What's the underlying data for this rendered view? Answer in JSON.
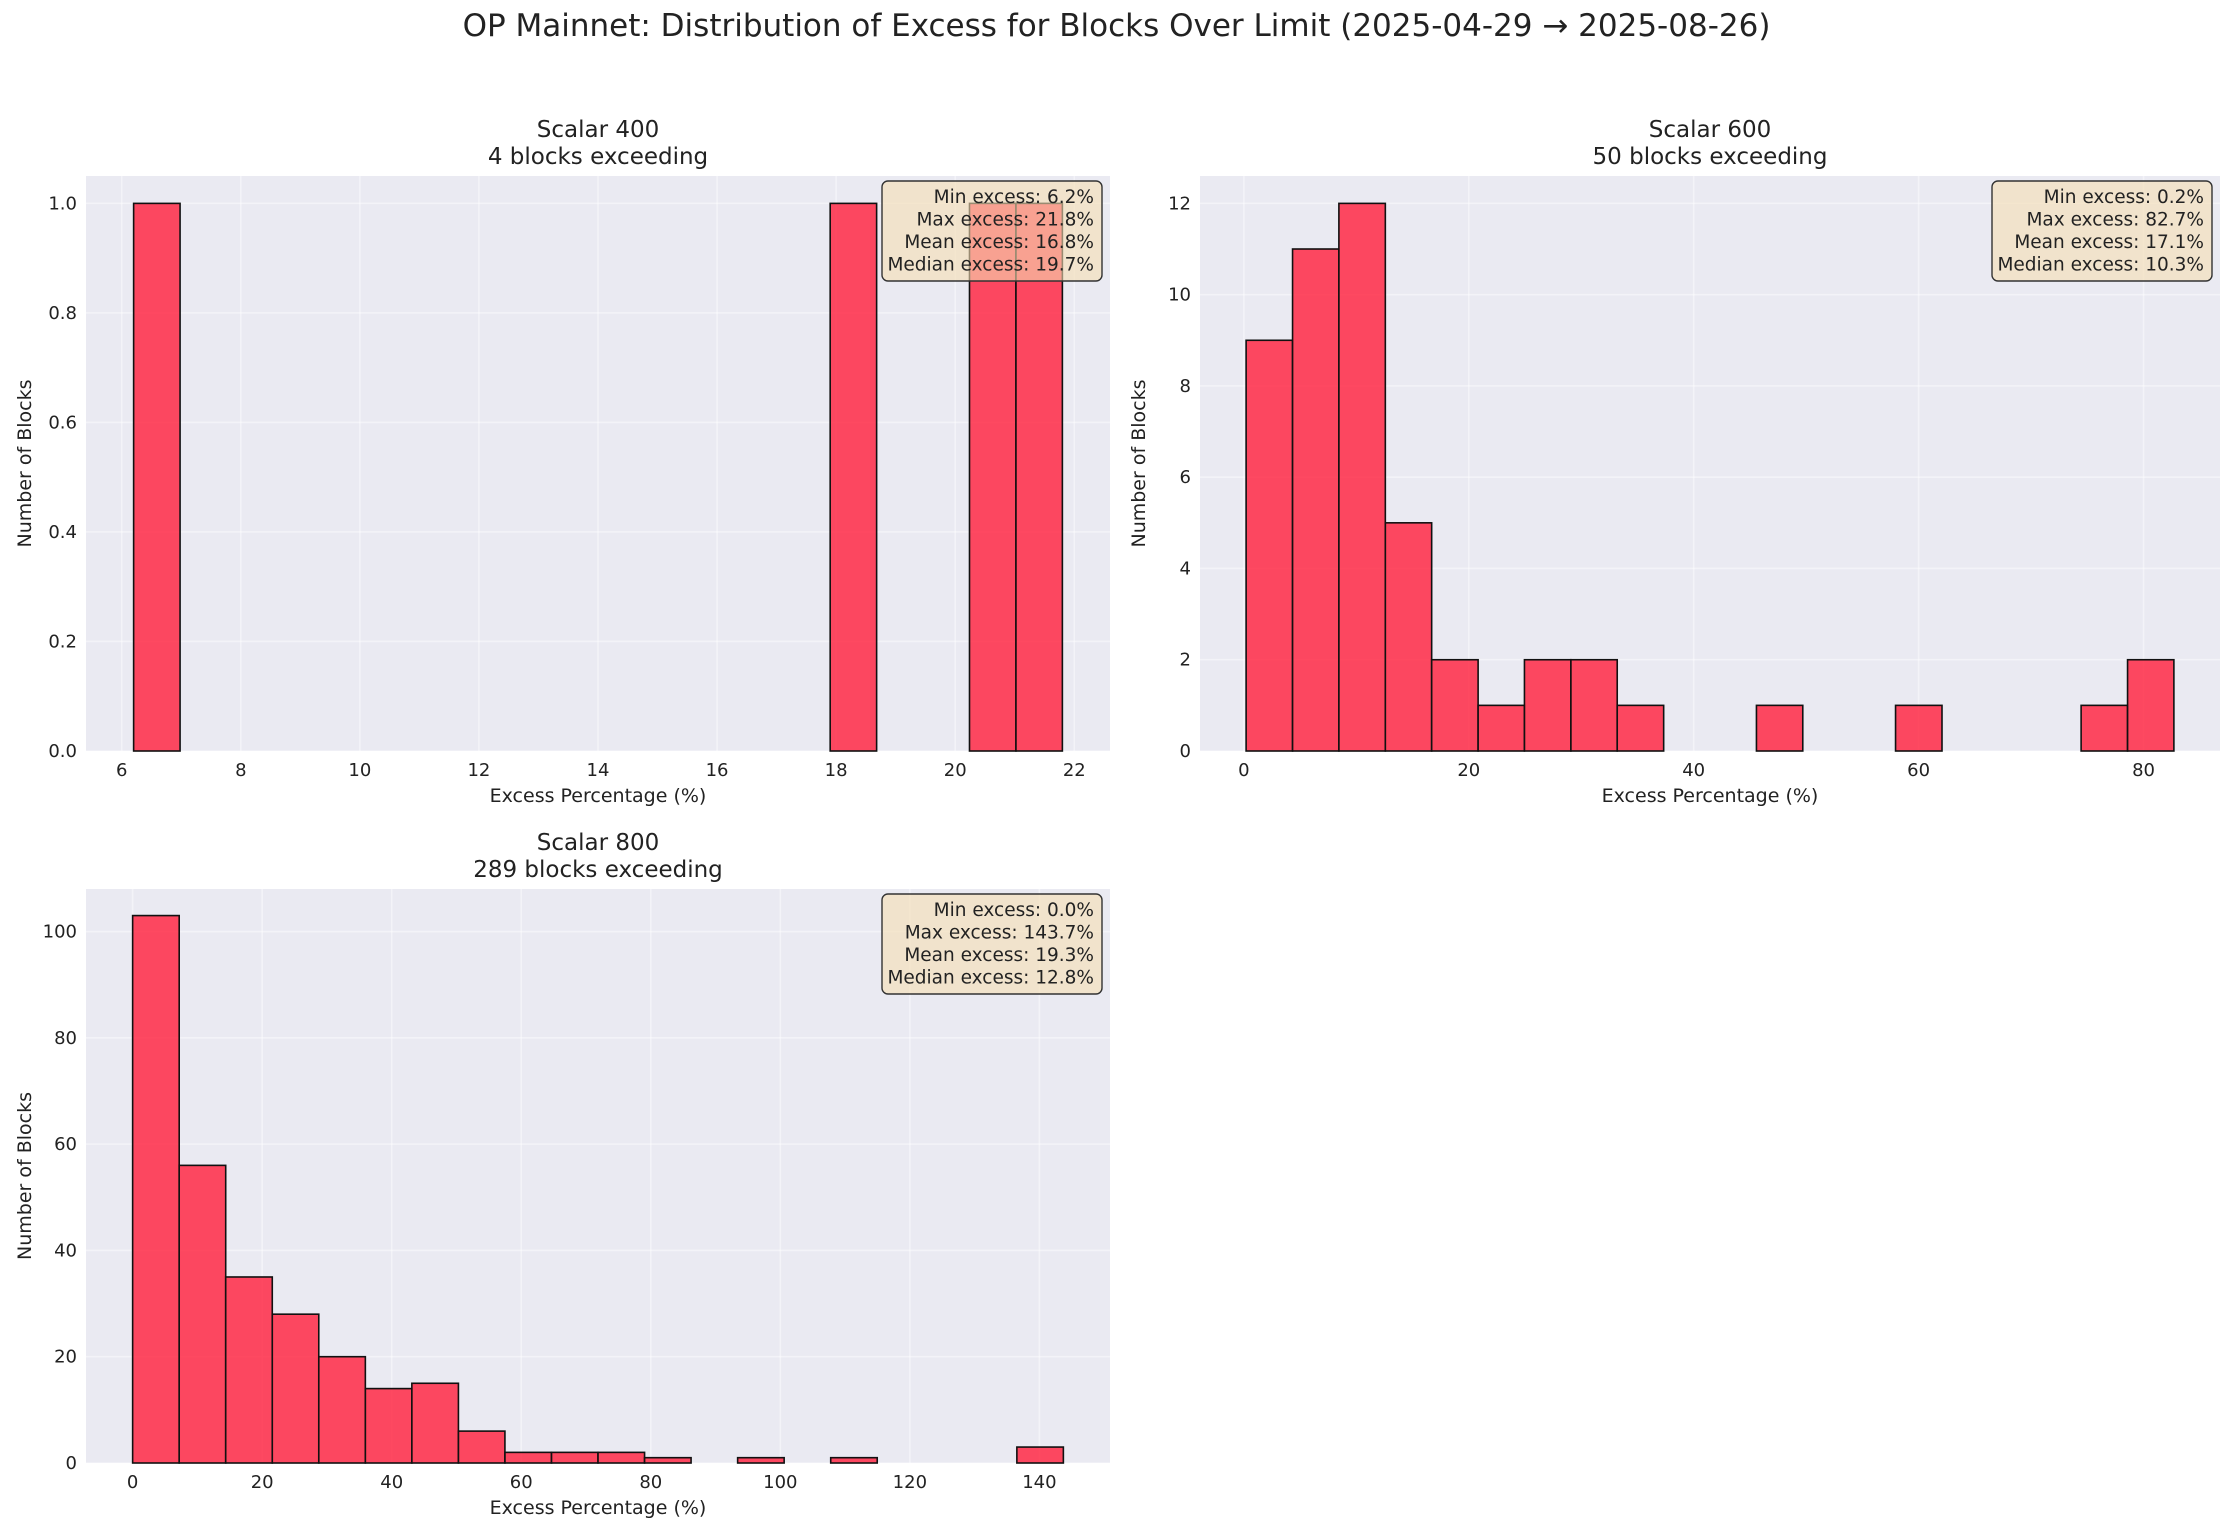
{
  "figure": {
    "title": "OP Mainnet: Distribution of Excess for Blocks Over Limit (2025-04-29 → 2025-08-26)"
  },
  "chart_data": [
    {
      "type": "bar",
      "subtype": "histogram",
      "title": "Scalar 400",
      "subtitle": "4 blocks exceeding",
      "xlabel": "Excess Percentage (%)",
      "ylabel": "Number of Blocks",
      "xlim": [
        5.4,
        22.6
      ],
      "ylim": [
        0,
        1.05
      ],
      "xticks": [
        6,
        8,
        10,
        12,
        14,
        16,
        18,
        20,
        22
      ],
      "yticks": [
        0.0,
        0.2,
        0.4,
        0.6,
        0.8,
        1.0
      ],
      "ytick_labels": [
        "0.0",
        "0.2",
        "0.4",
        "0.6",
        "0.8",
        "1.0"
      ],
      "bin_width": 0.78,
      "bins": [
        {
          "x0": 6.2,
          "x1": 6.98,
          "count": 1
        },
        {
          "x0": 17.9,
          "x1": 18.68,
          "count": 1
        },
        {
          "x0": 20.24,
          "x1": 21.02,
          "count": 1
        },
        {
          "x0": 21.02,
          "x1": 21.8,
          "count": 1
        }
      ],
      "bar_color": "#ff2a47",
      "grid": true,
      "stats_box": [
        "Min excess: 6.2%",
        "Max excess: 21.8%",
        "Mean excess: 16.8%",
        "Median excess: 19.7%"
      ]
    },
    {
      "type": "bar",
      "subtype": "histogram",
      "title": "Scalar 600",
      "subtitle": "50 blocks exceeding",
      "xlabel": "Excess Percentage (%)",
      "ylabel": "Number of Blocks",
      "xlim": [
        -3.9,
        86.8
      ],
      "ylim": [
        0,
        12.6
      ],
      "xticks": [
        0,
        20,
        40,
        60,
        80
      ],
      "yticks": [
        0,
        2,
        4,
        6,
        8,
        10,
        12
      ],
      "ytick_labels": [
        "0",
        "2",
        "4",
        "6",
        "8",
        "10",
        "12"
      ],
      "bins": [
        {
          "x0": 0.2,
          "x1": 4.33,
          "count": 9
        },
        {
          "x0": 4.33,
          "x1": 8.45,
          "count": 11
        },
        {
          "x0": 8.45,
          "x1": 12.58,
          "count": 12
        },
        {
          "x0": 12.58,
          "x1": 16.7,
          "count": 5
        },
        {
          "x0": 16.7,
          "x1": 20.83,
          "count": 2
        },
        {
          "x0": 20.83,
          "x1": 24.95,
          "count": 1
        },
        {
          "x0": 24.95,
          "x1": 29.08,
          "count": 2
        },
        {
          "x0": 29.08,
          "x1": 33.2,
          "count": 2
        },
        {
          "x0": 33.2,
          "x1": 37.33,
          "count": 1
        },
        {
          "x0": 45.58,
          "x1": 49.7,
          "count": 1
        },
        {
          "x0": 57.95,
          "x1": 62.08,
          "count": 1
        },
        {
          "x0": 74.45,
          "x1": 78.58,
          "count": 1
        },
        {
          "x0": 78.58,
          "x1": 82.7,
          "count": 2
        }
      ],
      "bar_color": "#ff2a47",
      "grid": true,
      "stats_box": [
        "Min excess: 0.2%",
        "Max excess: 82.7%",
        "Mean excess: 17.1%",
        "Median excess: 10.3%"
      ]
    },
    {
      "type": "bar",
      "subtype": "histogram",
      "title": "Scalar 800",
      "subtitle": "289 blocks exceeding",
      "xlabel": "Excess Percentage (%)",
      "ylabel": "Number of Blocks",
      "xlim": [
        -7.2,
        150.9
      ],
      "ylim": [
        0,
        108
      ],
      "xticks": [
        0,
        20,
        40,
        60,
        80,
        100,
        120,
        140
      ],
      "yticks": [
        0,
        20,
        40,
        60,
        80,
        100
      ],
      "ytick_labels": [
        "0",
        "20",
        "40",
        "60",
        "80",
        "100"
      ],
      "bins": [
        {
          "x0": 0.0,
          "x1": 7.19,
          "count": 103
        },
        {
          "x0": 7.19,
          "x1": 14.37,
          "count": 56
        },
        {
          "x0": 14.37,
          "x1": 21.56,
          "count": 35
        },
        {
          "x0": 21.56,
          "x1": 28.74,
          "count": 28
        },
        {
          "x0": 28.74,
          "x1": 35.93,
          "count": 20
        },
        {
          "x0": 35.93,
          "x1": 43.11,
          "count": 14
        },
        {
          "x0": 43.11,
          "x1": 50.3,
          "count": 15
        },
        {
          "x0": 50.3,
          "x1": 57.48,
          "count": 6
        },
        {
          "x0": 57.48,
          "x1": 64.67,
          "count": 2
        },
        {
          "x0": 64.67,
          "x1": 71.85,
          "count": 2
        },
        {
          "x0": 71.85,
          "x1": 79.04,
          "count": 2
        },
        {
          "x0": 79.04,
          "x1": 86.22,
          "count": 1
        },
        {
          "x0": 86.22,
          "x1": 93.41,
          "count": 0
        },
        {
          "x0": 93.41,
          "x1": 100.59,
          "count": 1
        },
        {
          "x0": 100.59,
          "x1": 107.78,
          "count": 0
        },
        {
          "x0": 107.78,
          "x1": 114.96,
          "count": 1
        },
        {
          "x0": 114.96,
          "x1": 122.15,
          "count": 0
        },
        {
          "x0": 122.15,
          "x1": 129.33,
          "count": 0
        },
        {
          "x0": 129.33,
          "x1": 136.52,
          "count": 0
        },
        {
          "x0": 136.52,
          "x1": 143.7,
          "count": 3
        }
      ],
      "bar_color": "#ff2a47",
      "grid": true,
      "stats_box": [
        "Min excess: 0.0%",
        "Max excess: 143.7%",
        "Mean excess: 19.3%",
        "Median excess: 12.8%"
      ]
    }
  ]
}
